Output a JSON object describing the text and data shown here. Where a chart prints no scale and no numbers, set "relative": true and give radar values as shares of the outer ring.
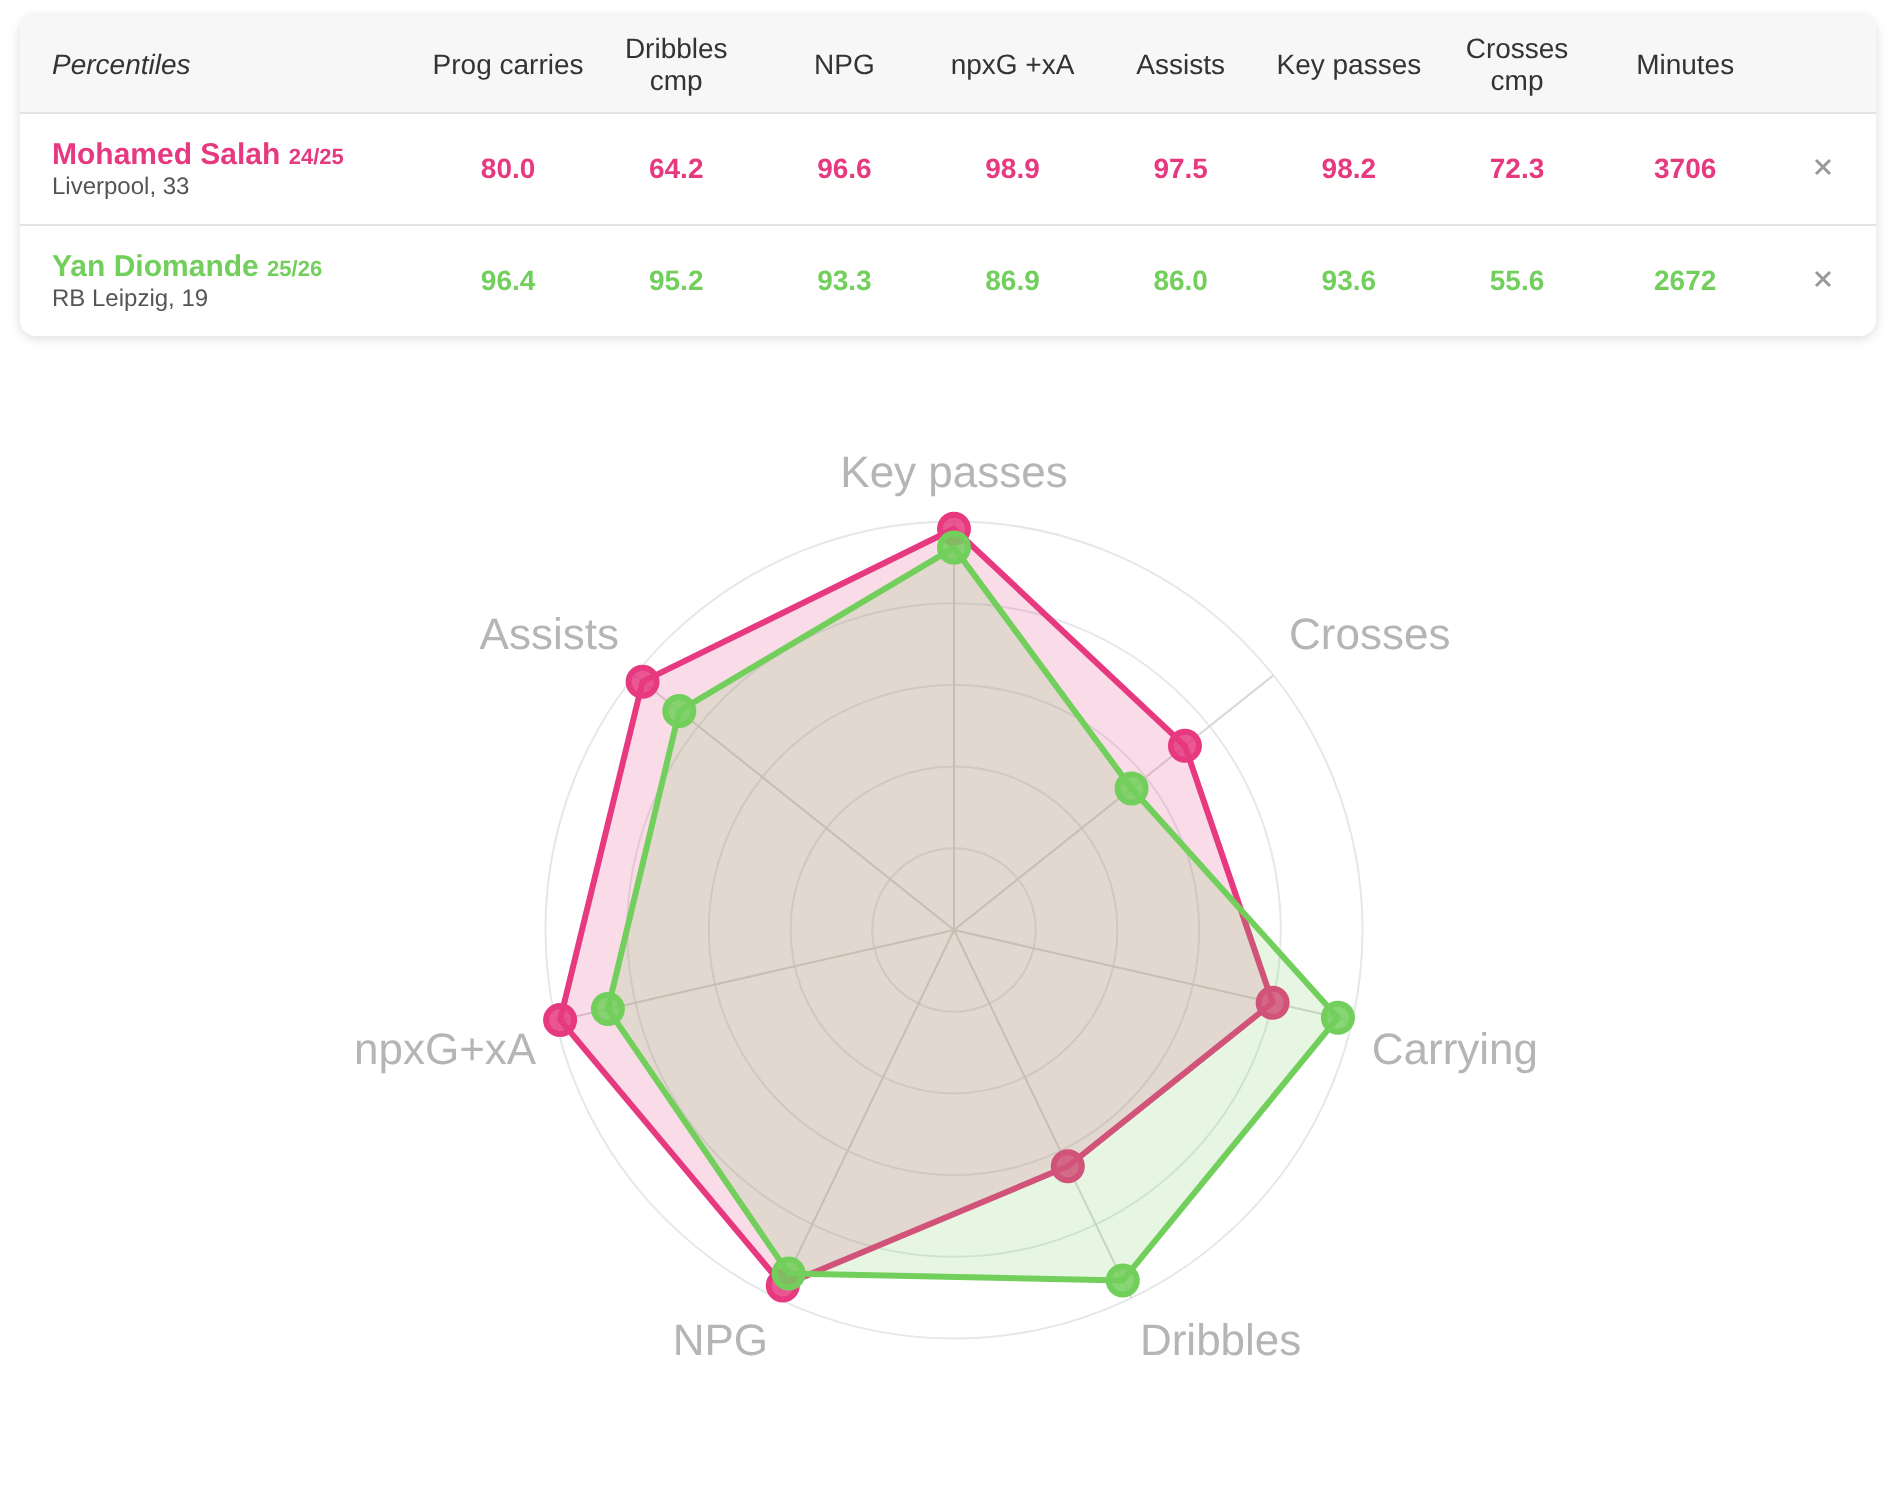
{
  "chart_data": [
    {
      "type": "other",
      "categories": [
        "Prog carries",
        "Dribbles cmp",
        "NPG",
        "npxG +xA",
        "Assists",
        "Key passes",
        "Crosses cmp",
        "Minutes"
      ],
      "annotations": [
        "Percentiles",
        "24/25",
        "Liverpool, 33",
        "25/26",
        "RB Leipzig, 19"
      ],
      "series": [
        {
          "name": "Mohamed Salah",
          "color": "#e6397f",
          "values": [
            80.0,
            64.2,
            96.6,
            98.9,
            97.5,
            98.2,
            72.3,
            3706
          ],
          "value_labels": [
            "80.0",
            "64.2",
            "96.6",
            "98.9",
            "97.5",
            "98.2",
            "72.3",
            "3706"
          ]
        },
        {
          "name": "Yan Diomande",
          "color": "#72cf5c",
          "values": [
            96.4,
            95.2,
            93.3,
            86.9,
            86.0,
            93.6,
            55.6,
            2672
          ],
          "value_labels": [
            "96.4",
            "95.2",
            "93.3",
            "86.9",
            "86.0",
            "93.6",
            "55.6",
            "2672"
          ]
        }
      ]
    },
    {
      "type": "radar",
      "relative": true,
      "grid": true,
      "marker": "circle",
      "categories": [
        "Key passes",
        "Crosses",
        "Carrying",
        "Dribbles",
        "NPG",
        "npxG+xA",
        "Assists"
      ],
      "series": [
        {
          "color": "#e6397f",
          "values": [
            0.982,
            0.723,
            0.8,
            0.642,
            0.966,
            0.989,
            0.975
          ]
        },
        {
          "color": "#72cf5c",
          "values": [
            0.936,
            0.556,
            0.964,
            0.952,
            0.933,
            0.869,
            0.86
          ]
        }
      ]
    }
  ]
}
